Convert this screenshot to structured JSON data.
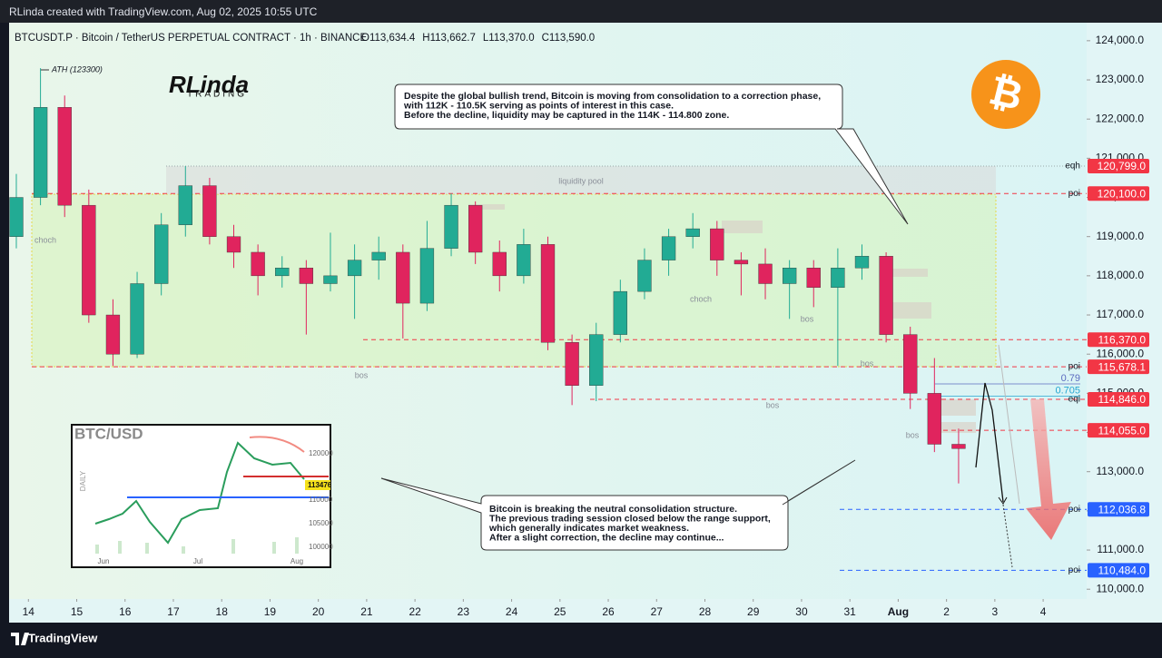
{
  "header": {
    "credit": "RLinda created with TradingView.com, Aug 02, 2025 10:55 UTC"
  },
  "footer": {
    "brand": "TradingView"
  },
  "chart_data": {
    "type": "candlestick",
    "title": "BTCUSDT.P · Bitcoin / TetherUS PERPETUAL CONTRACT · 1h · BINANCE",
    "ohlc_labels": [
      "O113,634.4",
      "H113,662.7",
      "L113,370.0",
      "C113,590.0"
    ],
    "colors": {
      "up": "#22ab94",
      "down": "#e0245e"
    },
    "x": [
      -0.25,
      0.25,
      0.75,
      1.25,
      1.75,
      2.25,
      2.75,
      3.25,
      3.75,
      4.25,
      4.75,
      5.25,
      5.75,
      6.25,
      6.75,
      7.25,
      7.75,
      8.25,
      8.75,
      9.25,
      9.75,
      10.25,
      10.75,
      11.25,
      11.75,
      12.25,
      12.75,
      13.25,
      13.75,
      14.25,
      14.75,
      15.25,
      15.75,
      16.25,
      16.75,
      17.25,
      17.75,
      18.25,
      18.75,
      19.25
    ],
    "open": [
      119000,
      120000,
      122300,
      119800,
      117000,
      116000,
      117800,
      119300,
      120300,
      119000,
      118600,
      118000,
      118200,
      117800,
      118000,
      118400,
      118600,
      117300,
      118700,
      119800,
      118600,
      118000,
      118800,
      116300,
      115200,
      116500,
      117600,
      118400,
      119000,
      119200,
      118400,
      118300,
      117800,
      118200,
      117700,
      118200,
      118500,
      116500,
      115000,
      113700
    ],
    "high": [
      120600,
      123300,
      122600,
      120200,
      117400,
      118100,
      119600,
      120800,
      120500,
      119300,
      118800,
      118500,
      118400,
      119100,
      118800,
      119000,
      118800,
      119400,
      120100,
      119900,
      118900,
      119200,
      119000,
      116500,
      116800,
      117900,
      118700,
      119200,
      119600,
      119400,
      118600,
      118700,
      118400,
      118400,
      118700,
      118800,
      118600,
      116700,
      115900,
      114100
    ],
    "low": [
      118700,
      119800,
      119500,
      116800,
      115700,
      115900,
      117500,
      119000,
      118800,
      118200,
      117500,
      117700,
      116500,
      117600,
      116900,
      117900,
      116400,
      117100,
      118500,
      118300,
      117600,
      117800,
      116100,
      114700,
      114800,
      116300,
      117400,
      118000,
      118700,
      118000,
      117500,
      117400,
      116900,
      117200,
      115700,
      117900,
      116300,
      114600,
      113500,
      112700
    ],
    "close": [
      120000,
      122300,
      119800,
      117000,
      116000,
      117800,
      119300,
      120300,
      119000,
      118600,
      118000,
      118200,
      117800,
      118000,
      118400,
      118600,
      117300,
      118700,
      119800,
      118600,
      118000,
      118800,
      116300,
      115200,
      116500,
      117600,
      118400,
      119000,
      119200,
      118400,
      118300,
      117800,
      118200,
      117700,
      118200,
      118500,
      116500,
      115000,
      113700,
      113590
    ],
    "xlim": [
      -0.4,
      21.9
    ],
    "xticks": [
      {
        "value": 0,
        "label": "14"
      },
      {
        "value": 1,
        "label": "15"
      },
      {
        "value": 2,
        "label": "16"
      },
      {
        "value": 3,
        "label": "17"
      },
      {
        "value": 4,
        "label": "18"
      },
      {
        "value": 5,
        "label": "19"
      },
      {
        "value": 6,
        "label": "20"
      },
      {
        "value": 7,
        "label": "21"
      },
      {
        "value": 8,
        "label": "22"
      },
      {
        "value": 9,
        "label": "23"
      },
      {
        "value": 10,
        "label": "24"
      },
      {
        "value": 11,
        "label": "25"
      },
      {
        "value": 12,
        "label": "26"
      },
      {
        "value": 13,
        "label": "27"
      },
      {
        "value": 14,
        "label": "28"
      },
      {
        "value": 15,
        "label": "29"
      },
      {
        "value": 16,
        "label": "30"
      },
      {
        "value": 17,
        "label": "31"
      },
      {
        "value": 18,
        "label": "Aug"
      },
      {
        "value": 19,
        "label": "2"
      },
      {
        "value": 20,
        "label": "3"
      },
      {
        "value": 21,
        "label": "4"
      }
    ],
    "ylim": [
      109750,
      124460
    ],
    "yticks": [
      {
        "value": 110000,
        "label": "110,000.0"
      },
      {
        "value": 111000,
        "label": "111,000.0"
      },
      {
        "value": 112000,
        "label": "112,000.0"
      },
      {
        "value": 113000,
        "label": "113,000.0"
      },
      {
        "value": 114000,
        "label": "114,000.0"
      },
      {
        "value": 115000,
        "label": "115,000.0"
      },
      {
        "value": 116000,
        "label": "116,000.0"
      },
      {
        "value": 117000,
        "label": "117,000.0"
      },
      {
        "value": 118000,
        "label": "118,000.0"
      },
      {
        "value": 119000,
        "label": "119,000.0"
      },
      {
        "value": 120000,
        "label": "120,000.0"
      },
      {
        "value": 121000,
        "label": "121,000.0"
      },
      {
        "value": 122000,
        "label": "122,000.0"
      },
      {
        "value": 123000,
        "label": "123,000.0"
      },
      {
        "value": 124000,
        "label": "124,000.0"
      }
    ],
    "levels": [
      {
        "value": 120799,
        "label": "120,799.0",
        "tag": "eqh",
        "color": "#f23645"
      },
      {
        "value": 120100,
        "label": "120,100.0",
        "tag": "poi",
        "color": "#f23645"
      },
      {
        "value": 116370,
        "label": "116,370.0",
        "color": "#f23645"
      },
      {
        "value": 115678.1,
        "label": "115,678.1",
        "tag": "poi",
        "color": "#f23645"
      },
      {
        "value": 114846,
        "label": "114,846.0",
        "tag": "eqi",
        "color": "#f23645"
      },
      {
        "value": 114055,
        "label": "114,055.0",
        "color": "#f23645"
      },
      {
        "value": 112036.8,
        "label": "112,036.8",
        "tag": "poi",
        "color": "#2962ff"
      },
      {
        "value": 110484,
        "label": "110,484.0",
        "tag": "poi",
        "color": "#2962ff"
      }
    ],
    "fib_levels": [
      {
        "value": 115240,
        "label": "0.79",
        "color": "#5c6bc0"
      },
      {
        "value": 114930,
        "label": "0.705",
        "color": "#26a6d1"
      }
    ],
    "annotations": [
      "ATH (123300)",
      "choch",
      "liquidity pool",
      "bos",
      "choch",
      "bos",
      "bos",
      "bos",
      "bos"
    ],
    "callouts": [
      [
        "Despite the global bullish trend, Bitcoin is moving from consolidation to a correction phase,",
        "with 112K - 110.5K serving as points of interest in this case.",
        "Before the decline, liquidity may be captured in the 114K - 114.800 zone."
      ],
      [
        "Bitcoin is breaking the neutral consolidation structure.",
        "The previous trading session closed below the range support,",
        "which generally indicates market weakness.",
        "After a slight correction, the decline may continue..."
      ]
    ],
    "logo": {
      "name": "RLinda",
      "sub": "TRADING",
      "coin": "₿"
    },
    "inset": {
      "title": "BTC/USD",
      "frame": "DAILY",
      "yticks": [
        "120000",
        "110000",
        "105000",
        "100000"
      ],
      "price": "113476",
      "xticks": [
        "Jun",
        "Jul",
        "Aug"
      ]
    }
  }
}
